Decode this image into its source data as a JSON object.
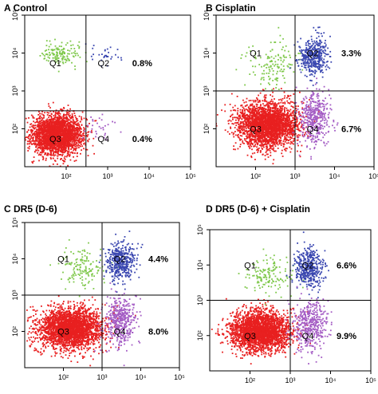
{
  "colors": {
    "q1": "#7ec84a",
    "q2": "#3a47b0",
    "q3": "#e82020",
    "q4": "#a45cc4",
    "gate": "#000000",
    "frame": "#000000"
  },
  "chart_data": [
    {
      "type": "scatter",
      "panel_label": "A Control",
      "xscale": "log",
      "yscale": "log",
      "xlim": [
        10,
        100000
      ],
      "ylim": [
        10,
        100000
      ],
      "x_ticks": [
        100,
        1000,
        10000,
        100000
      ],
      "y_ticks": [
        100,
        1000,
        10000,
        100000
      ],
      "x_ticklabels": [
        "10²",
        "10³",
        "10⁴",
        "10⁵"
      ],
      "y_ticklabels": [
        "10²",
        "10³",
        "10⁴",
        "10⁵"
      ],
      "gate": {
        "x": 300,
        "y": 300
      },
      "quadrants": [
        {
          "id": "Q1",
          "label": "Q1",
          "percent": ""
        },
        {
          "id": "Q2",
          "label": "Q2",
          "percent": "0.8%"
        },
        {
          "id": "Q3",
          "label": "Q3",
          "percent": ""
        },
        {
          "id": "Q4",
          "label": "Q4",
          "percent": "0.4%"
        }
      ],
      "populations": [
        {
          "quadrant": "Q3",
          "center": [
            60,
            70
          ],
          "spread": [
            0.3,
            0.26
          ],
          "density": "high"
        },
        {
          "quadrant": "Q1",
          "center": [
            80,
            9000
          ],
          "spread": [
            0.22,
            0.15
          ],
          "density": "low"
        },
        {
          "quadrant": "Q2",
          "center": [
            1000,
            9000
          ],
          "spread": [
            0.25,
            0.15
          ],
          "density": "very-low"
        },
        {
          "quadrant": "Q4",
          "center": [
            600,
            100
          ],
          "spread": [
            0.2,
            0.2
          ],
          "density": "very-low"
        }
      ],
      "grid": false
    },
    {
      "type": "scatter",
      "panel_label": "B Cisplatin",
      "xscale": "log",
      "yscale": "log",
      "xlim": [
        10,
        100000
      ],
      "ylim": [
        10,
        100000
      ],
      "x_ticks": [
        100,
        1000,
        10000,
        100000
      ],
      "y_ticks": [
        100,
        1000,
        10000,
        100000
      ],
      "x_ticklabels": [
        "10²",
        "10³",
        "10⁴",
        "10⁵"
      ],
      "y_ticklabels": [
        "10²",
        "10³",
        "10⁴",
        "10⁵"
      ],
      "gate": {
        "x": 1000,
        "y": 1000
      },
      "quadrants": [
        {
          "id": "Q1",
          "label": "Q1",
          "percent": ""
        },
        {
          "id": "Q2",
          "label": "Q2",
          "percent": "3.3%"
        },
        {
          "id": "Q3",
          "label": "Q3",
          "percent": ""
        },
        {
          "id": "Q4",
          "label": "Q4",
          "percent": "6.7%"
        }
      ],
      "populations": [
        {
          "quadrant": "Q3",
          "center": [
            200,
            130
          ],
          "spread": [
            0.38,
            0.3
          ],
          "density": "high"
        },
        {
          "quadrant": "Q1",
          "center": [
            300,
            5000
          ],
          "spread": [
            0.3,
            0.3
          ],
          "density": "low"
        },
        {
          "quadrant": "Q2",
          "center": [
            3000,
            8000
          ],
          "spread": [
            0.18,
            0.25
          ],
          "density": "medium"
        },
        {
          "quadrant": "Q4",
          "center": [
            3000,
            200
          ],
          "spread": [
            0.2,
            0.35
          ],
          "density": "medium"
        }
      ],
      "grid": false
    },
    {
      "type": "scatter",
      "panel_label": "C DR5  (D-6)",
      "xscale": "log",
      "yscale": "log",
      "xlim": [
        10,
        100000
      ],
      "ylim": [
        10,
        100000
      ],
      "x_ticks": [
        100,
        1000,
        10000,
        100000
      ],
      "y_ticks": [
        100,
        1000,
        10000,
        100000
      ],
      "x_ticklabels": [
        "10²",
        "10³",
        "10⁴",
        "10⁵"
      ],
      "y_ticklabels": [
        "10²",
        "10³",
        "10⁴",
        "10⁵"
      ],
      "gate": {
        "x": 1000,
        "y": 1000
      },
      "quadrants": [
        {
          "id": "Q1",
          "label": "Q1",
          "percent": ""
        },
        {
          "id": "Q2",
          "label": "Q2",
          "percent": "4.4%"
        },
        {
          "id": "Q3",
          "label": "Q3",
          "percent": ""
        },
        {
          "id": "Q4",
          "label": "Q4",
          "percent": "8.0%"
        }
      ],
      "populations": [
        {
          "quadrant": "Q3",
          "center": [
            150,
            120
          ],
          "spread": [
            0.42,
            0.28
          ],
          "density": "high"
        },
        {
          "quadrant": "Q1",
          "center": [
            300,
            5000
          ],
          "spread": [
            0.3,
            0.28
          ],
          "density": "low"
        },
        {
          "quadrant": "Q2",
          "center": [
            3000,
            8000
          ],
          "spread": [
            0.18,
            0.25
          ],
          "density": "medium"
        },
        {
          "quadrant": "Q4",
          "center": [
            3000,
            200
          ],
          "spread": [
            0.2,
            0.35
          ],
          "density": "medium"
        }
      ],
      "grid": false
    },
    {
      "type": "scatter",
      "panel_label": "D DR5  (D-6) + Cisplatin",
      "xscale": "log",
      "yscale": "log",
      "xlim": [
        10,
        100000
      ],
      "ylim": [
        10,
        100000
      ],
      "x_ticks": [
        100,
        1000,
        10000,
        100000
      ],
      "y_ticks": [
        100,
        1000,
        10000,
        100000
      ],
      "x_ticklabels": [
        "10²",
        "10³",
        "10⁴",
        "10⁵"
      ],
      "y_ticklabels": [
        "10²",
        "10³",
        "10⁴",
        "10⁵"
      ],
      "gate": {
        "x": 1000,
        "y": 1000
      },
      "quadrants": [
        {
          "id": "Q1",
          "label": "Q1",
          "percent": ""
        },
        {
          "id": "Q2",
          "label": "Q2",
          "percent": "6.6%"
        },
        {
          "id": "Q3",
          "label": "Q3",
          "percent": ""
        },
        {
          "id": "Q4",
          "label": "Q4",
          "percent": "9.9%"
        }
      ],
      "populations": [
        {
          "quadrant": "Q3",
          "center": [
            180,
            130
          ],
          "spread": [
            0.36,
            0.28
          ],
          "density": "high"
        },
        {
          "quadrant": "Q1",
          "center": [
            300,
            5000
          ],
          "spread": [
            0.3,
            0.28
          ],
          "density": "low"
        },
        {
          "quadrant": "Q2",
          "center": [
            3000,
            8000
          ],
          "spread": [
            0.18,
            0.28
          ],
          "density": "medium"
        },
        {
          "quadrant": "Q4",
          "center": [
            3000,
            200
          ],
          "spread": [
            0.2,
            0.35
          ],
          "density": "medium"
        }
      ],
      "grid": false
    }
  ]
}
